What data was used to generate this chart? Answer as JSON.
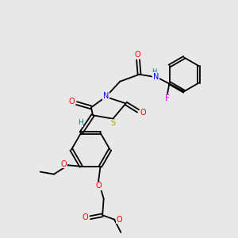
{
  "bg_color": "#e8e8e8",
  "atom_colors": {
    "C": "#000000",
    "H": "#008080",
    "N": "#0000ff",
    "O": "#ff0000",
    "S": "#aaaa00",
    "F": "#cc00cc"
  }
}
